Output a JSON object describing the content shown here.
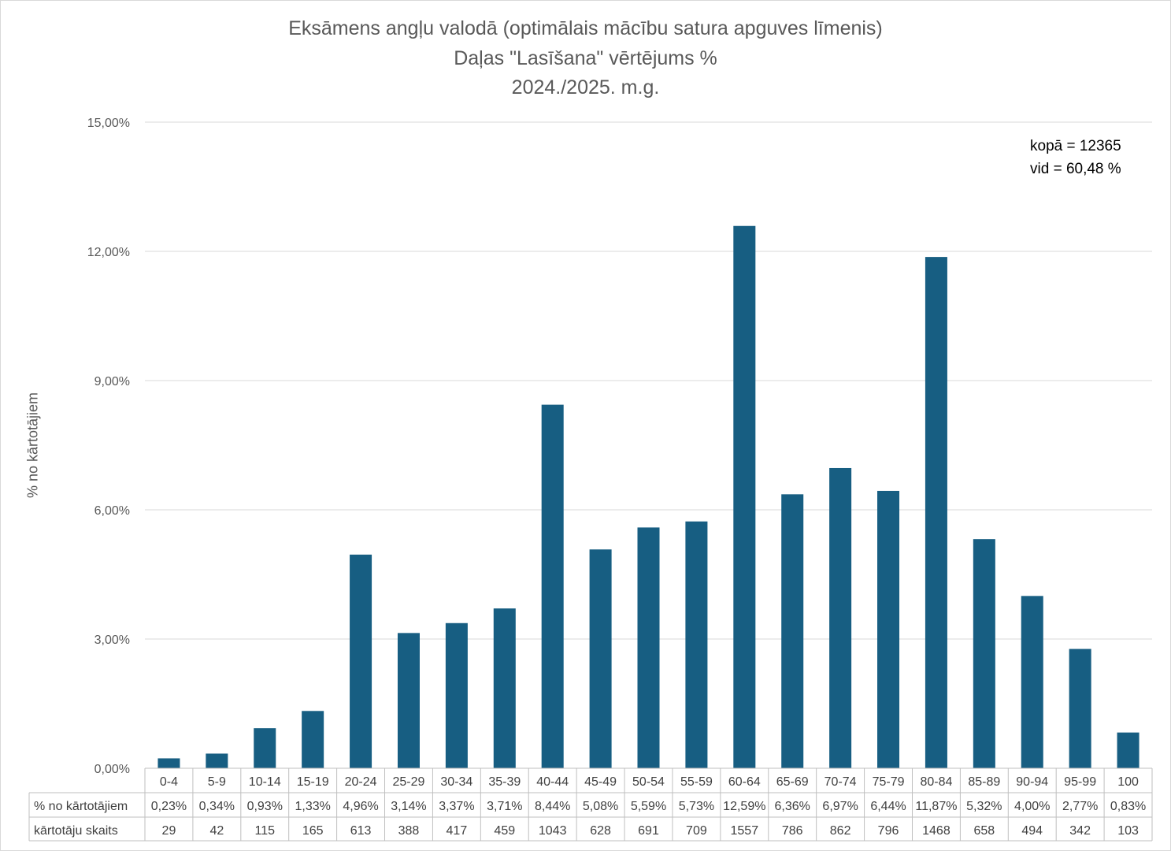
{
  "chart_data": {
    "type": "bar",
    "title": [
      "Eksāmens angļu valodā (optimālais mācību satura apguves līmenis)",
      "Daļas \"Lasīšana\" vērtējums %",
      "2024./2025. m.g."
    ],
    "ylabel": "% no kārtotājiem",
    "ylim": [
      0,
      15
    ],
    "yticks": [
      "0,00%",
      "3,00%",
      "6,00%",
      "9,00%",
      "12,00%",
      "15,00%"
    ],
    "grid": true,
    "bar_color": "#175e82",
    "annotations": [
      "kopā = 12365",
      "vid = 60,48 %"
    ],
    "categories": [
      "0-4",
      "5-9",
      "10-14",
      "15-19",
      "20-24",
      "25-29",
      "30-34",
      "35-39",
      "40-44",
      "45-49",
      "50-54",
      "55-59",
      "60-64",
      "65-69",
      "70-74",
      "75-79",
      "80-84",
      "85-89",
      "90-94",
      "95-99",
      "100"
    ],
    "values": [
      0.23,
      0.34,
      0.93,
      1.33,
      4.96,
      3.14,
      3.37,
      3.71,
      8.44,
      5.08,
      5.59,
      5.73,
      12.59,
      6.36,
      6.97,
      6.44,
      11.87,
      5.32,
      4.0,
      2.77,
      0.83
    ],
    "table": {
      "rows": [
        {
          "label": "% no kārtotājiem",
          "cells": [
            "0,23%",
            "0,34%",
            "0,93%",
            "1,33%",
            "4,96%",
            "3,14%",
            "3,37%",
            "3,71%",
            "8,44%",
            "5,08%",
            "5,59%",
            "5,73%",
            "12,59%",
            "6,36%",
            "6,97%",
            "6,44%",
            "11,87%",
            "5,32%",
            "4,00%",
            "2,77%",
            "0,83%"
          ]
        },
        {
          "label": "kārtotāju skaits",
          "cells": [
            "29",
            "42",
            "115",
            "165",
            "613",
            "388",
            "417",
            "459",
            "1043",
            "628",
            "691",
            "709",
            "1557",
            "786",
            "862",
            "796",
            "1468",
            "658",
            "494",
            "342",
            "103"
          ]
        }
      ]
    }
  }
}
